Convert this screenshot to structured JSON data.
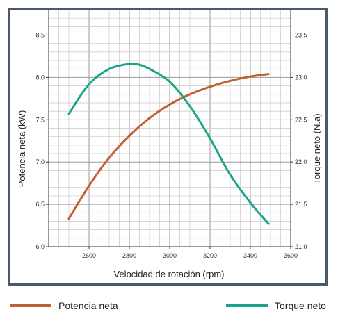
{
  "chart_data": {
    "type": "line",
    "xlabel": "Velocidad de rotación (rpm)",
    "ylabel_left": "Potencia neta (kW)",
    "ylabel_right": "Torque neto (N.a)",
    "xlim": [
      2400,
      3600
    ],
    "ylim_left": [
      6.0,
      8.8
    ],
    "ylim_right": [
      21.0,
      23.8
    ],
    "x_ticks": [
      "2600",
      "2800",
      "3000",
      "3200",
      "3400",
      "3600"
    ],
    "y_left_ticks": [
      "6,0",
      "6,5",
      "7,0",
      "7,5",
      "8,0",
      "8,5"
    ],
    "y_right_ticks": [
      "21,0",
      "21,5",
      "22,0",
      "22,5",
      "23,0",
      "23,5"
    ],
    "grid": true,
    "legend_position": "bottom",
    "series": [
      {
        "name": "Potencia neta",
        "axis": "left",
        "color": "#c0602e",
        "x": [
          2500,
          2600,
          2700,
          2800,
          2900,
          3000,
          3100,
          3200,
          3300,
          3400,
          3490
        ],
        "y": [
          6.33,
          6.72,
          7.05,
          7.31,
          7.52,
          7.68,
          7.8,
          7.89,
          7.96,
          8.01,
          8.04
        ]
      },
      {
        "name": "Torque neto",
        "axis": "right",
        "color": "#1aa58b",
        "x": [
          2500,
          2600,
          2700,
          2800,
          2850,
          2900,
          3000,
          3100,
          3200,
          3300,
          3400,
          3490
        ],
        "y": [
          22.57,
          22.92,
          23.1,
          23.16,
          23.15,
          23.1,
          22.95,
          22.66,
          22.28,
          21.85,
          21.52,
          21.27
        ]
      }
    ]
  }
}
